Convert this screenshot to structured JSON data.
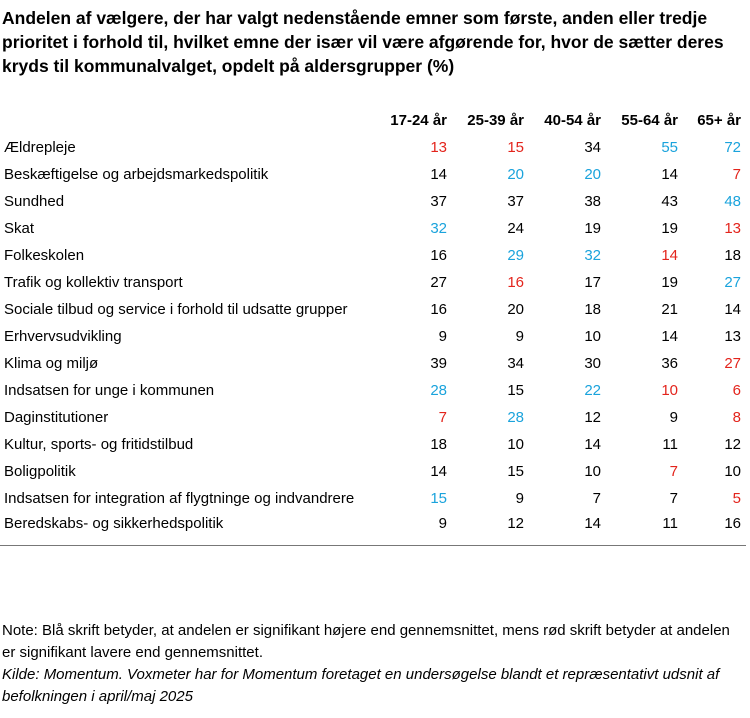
{
  "header": {
    "title": "Andelen af vælgere, der har valgt nedenstående emner som første, anden eller tredje prioritet i forhold til, hvilket emne der især vil være afgørende for, hvor de sætter deres kryds til kommunalvalget, opdelt på aldersgrupper (%)"
  },
  "table": {
    "columns": [
      "17-24 år",
      "25-39 år",
      "40-54 år",
      "55-64 år",
      "65+ år"
    ],
    "rows": [
      {
        "label": "Ældrepleje",
        "values": [
          13,
          15,
          34,
          55,
          72
        ],
        "colors": [
          "#e3241c",
          "#e3241c",
          "#000000",
          "#1aa3dc",
          "#1aa3dc"
        ]
      },
      {
        "label": "Beskæftigelse og arbejdsmarkedspolitik",
        "values": [
          14,
          20,
          20,
          14,
          7
        ],
        "colors": [
          "#000000",
          "#1aa3dc",
          "#1aa3dc",
          "#000000",
          "#e3241c"
        ]
      },
      {
        "label": "Sundhed",
        "values": [
          37,
          37,
          38,
          43,
          48
        ],
        "colors": [
          "#000000",
          "#000000",
          "#000000",
          "#000000",
          "#1aa3dc"
        ]
      },
      {
        "label": "Skat",
        "values": [
          32,
          24,
          19,
          19,
          13
        ],
        "colors": [
          "#1aa3dc",
          "#000000",
          "#000000",
          "#000000",
          "#e3241c"
        ]
      },
      {
        "label": "Folkeskolen",
        "values": [
          16,
          29,
          32,
          14,
          18
        ],
        "colors": [
          "#000000",
          "#1aa3dc",
          "#1aa3dc",
          "#e3241c",
          "#000000"
        ]
      },
      {
        "label": "Trafik og kollektiv transport",
        "values": [
          27,
          16,
          17,
          19,
          27
        ],
        "colors": [
          "#000000",
          "#e3241c",
          "#000000",
          "#000000",
          "#1aa3dc"
        ]
      },
      {
        "label": "Sociale tilbud og service i forhold til udsatte grupper",
        "values": [
          16,
          20,
          18,
          21,
          14
        ],
        "colors": [
          "#000000",
          "#000000",
          "#000000",
          "#000000",
          "#000000"
        ]
      },
      {
        "label": "Erhvervsudvikling",
        "values": [
          9,
          9,
          10,
          14,
          13
        ],
        "colors": [
          "#000000",
          "#000000",
          "#000000",
          "#000000",
          "#000000"
        ]
      },
      {
        "label": "Klima og miljø",
        "values": [
          39,
          34,
          30,
          36,
          27
        ],
        "colors": [
          "#000000",
          "#000000",
          "#000000",
          "#000000",
          "#e3241c"
        ]
      },
      {
        "label": "Indsatsen for unge i kommunen",
        "values": [
          28,
          15,
          22,
          10,
          6
        ],
        "colors": [
          "#1aa3dc",
          "#000000",
          "#1aa3dc",
          "#e3241c",
          "#e3241c"
        ]
      },
      {
        "label": "Daginstitutioner",
        "values": [
          7,
          28,
          12,
          9,
          8
        ],
        "colors": [
          "#e3241c",
          "#1aa3dc",
          "#000000",
          "#000000",
          "#e3241c"
        ]
      },
      {
        "label": "Kultur, sports- og fritidstilbud",
        "values": [
          18,
          10,
          14,
          11,
          12
        ],
        "colors": [
          "#000000",
          "#000000",
          "#000000",
          "#000000",
          "#000000"
        ]
      },
      {
        "label": "Boligpolitik",
        "values": [
          14,
          15,
          10,
          7,
          10
        ],
        "colors": [
          "#000000",
          "#000000",
          "#000000",
          "#e3241c",
          "#000000"
        ]
      },
      {
        "label": "Indsatsen for integration af flygtninge og indvandrere",
        "values": [
          15,
          9,
          7,
          7,
          5
        ],
        "colors": [
          "#1aa3dc",
          "#000000",
          "#000000",
          "#000000",
          "#e3241c"
        ]
      },
      {
        "label": "Beredskabs- og sikkerhedspolitik",
        "values": [
          9,
          12,
          14,
          11,
          16
        ],
        "colors": [
          "#000000",
          "#000000",
          "#000000",
          "#000000",
          "#000000"
        ]
      }
    ]
  },
  "notes": {
    "note": "Note: Blå skrift betyder, at andelen er signifikant højere end gennemsnittet, mens rød skrift betyder at andelen er signifikant lavere end gennemsnittet.",
    "source": "Kilde: Momentum. Voxmeter har for Momentum foretaget en undersøgelse blandt et repræsentativt udsnit af befolkningen i april/maj 2025"
  }
}
